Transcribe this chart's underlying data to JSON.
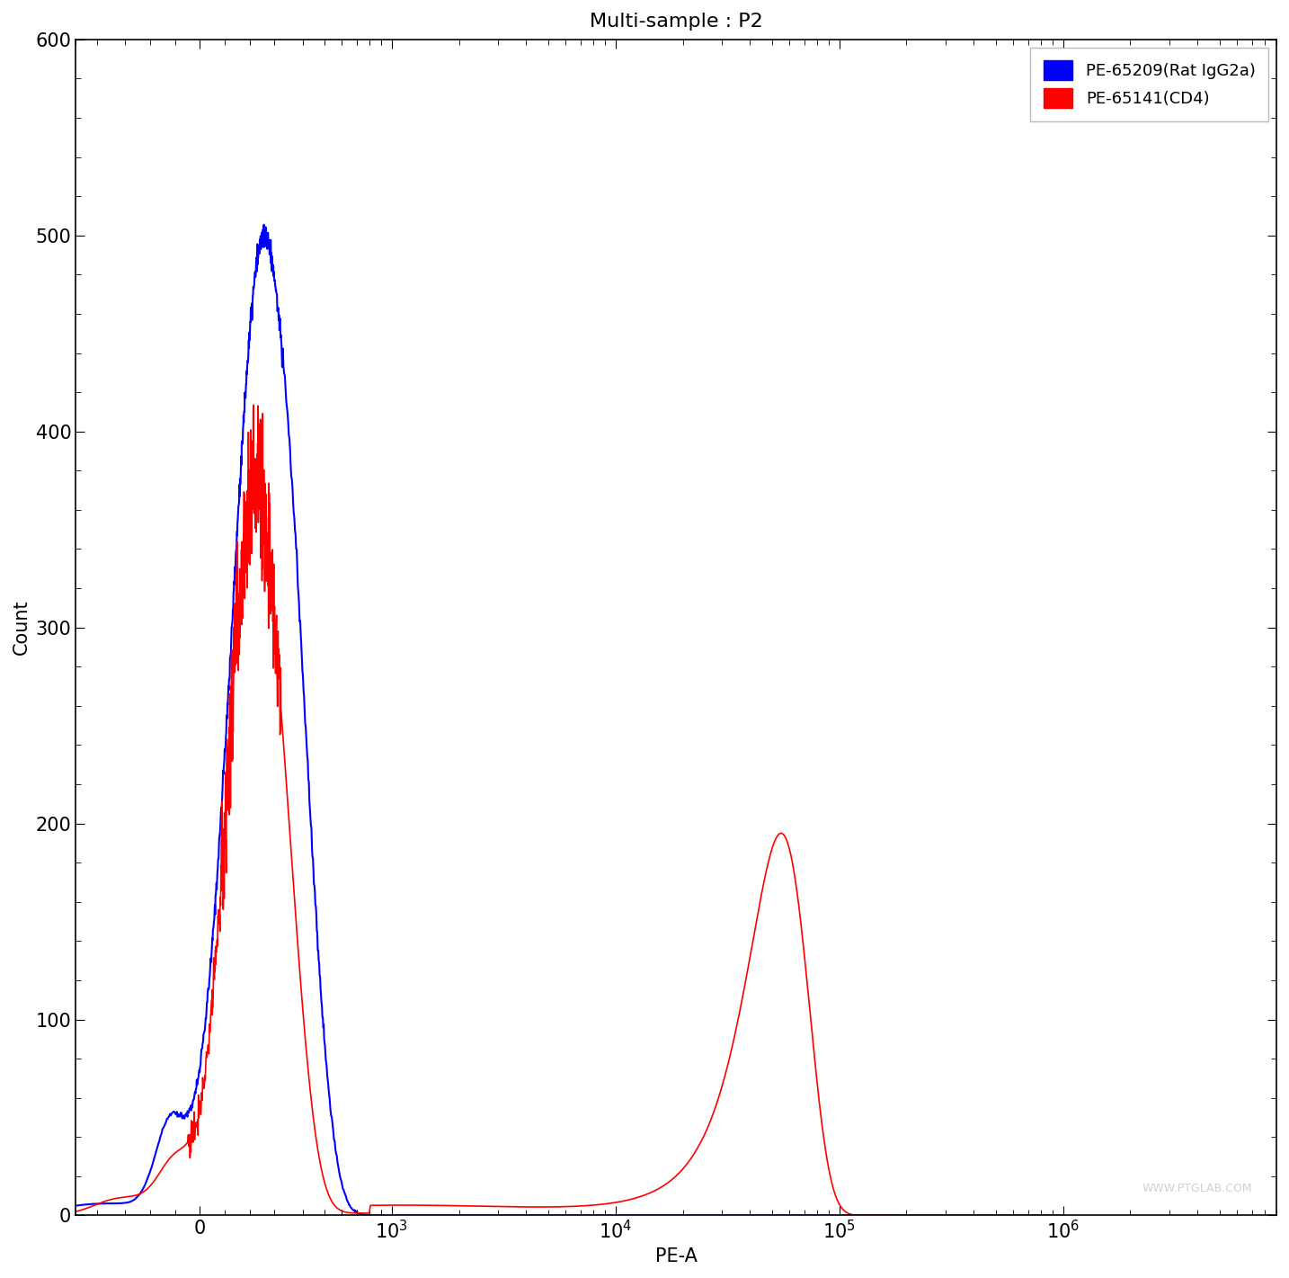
{
  "title": "Multi-sample : P2",
  "xlabel": "PE-A",
  "ylabel": "Count",
  "ylim": [
    0,
    600
  ],
  "yticks": [
    0,
    100,
    200,
    300,
    400,
    500,
    600
  ],
  "xlim_left": -500,
  "xlim_right": 1000000,
  "linthresh": 300,
  "linscale": 0.3,
  "blue_label": "PE-65209(Rat IgG2a)",
  "red_label": "PE-65141(CD4)",
  "blue_color": "#0000FF",
  "red_color": "#FF0000",
  "background_color": "#FFFFFF",
  "watermark": "WWW.PTGLAB.COM",
  "title_fontsize": 16,
  "axis_fontsize": 15,
  "legend_fontsize": 13,
  "tick_labelsize": 15
}
